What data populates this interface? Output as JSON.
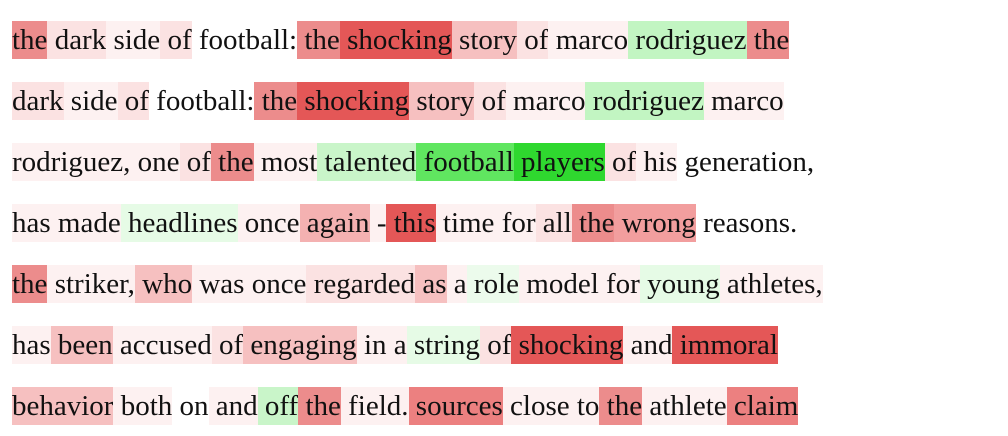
{
  "lines": [
    [
      [
        "the",
        "#ec8c8c"
      ],
      [
        "dark",
        "#fbe2e2"
      ],
      [
        "side",
        "#fdf1f1"
      ],
      [
        "of",
        "#fbe2e2"
      ],
      [
        "football:",
        "#ffffff"
      ],
      [
        "the",
        "#ec8c8c"
      ],
      [
        "shocking",
        "#e45757"
      ],
      [
        "story",
        "#f6c0c0"
      ],
      [
        "of",
        "#fbe2e2"
      ],
      [
        "marco",
        "#fdf1f1"
      ],
      [
        "rodriguez",
        "#c2f5c2"
      ],
      [
        "the",
        "#ec8c8c"
      ]
    ],
    [
      [
        "dark",
        "#fbe2e2"
      ],
      [
        "side",
        "#fdf1f1"
      ],
      [
        "of",
        "#fbe2e2"
      ],
      [
        "football:",
        "#ffffff"
      ],
      [
        "the",
        "#ec8c8c"
      ],
      [
        "shocking",
        "#e45757"
      ],
      [
        "story",
        "#f6c0c0"
      ],
      [
        "of",
        "#fbe2e2"
      ],
      [
        "marco",
        "#fdf1f1"
      ],
      [
        "rodriguez",
        "#c2f5c2"
      ],
      [
        "marco",
        "#fdf1f1"
      ]
    ],
    [
      [
        "rodriguez,",
        "#fdf1f1"
      ],
      [
        "one",
        "#fdf1f1"
      ],
      [
        "of",
        "#fbe2e2"
      ],
      [
        "the",
        "#ec8c8c"
      ],
      [
        "most",
        "#fdf1f1"
      ],
      [
        "talented",
        "#c9f5c9"
      ],
      [
        "football",
        "#60e660"
      ],
      [
        "players",
        "#2fd82f"
      ],
      [
        "of",
        "#fbe2e2"
      ],
      [
        "his",
        "#fdf1f1"
      ],
      [
        "generation,",
        "#ffffff"
      ]
    ],
    [
      [
        "has",
        "#fdf1f1"
      ],
      [
        "made",
        "#fdf1f1"
      ],
      [
        "headlines",
        "#e6fbe6"
      ],
      [
        "once",
        "#fdf1f1"
      ],
      [
        "again",
        "#f4b1b1"
      ],
      [
        "-",
        "#fdf1f1"
      ],
      [
        "this",
        "#e45757"
      ],
      [
        "time",
        "#fdf1f1"
      ],
      [
        "for",
        "#fdf1f1"
      ],
      [
        "all",
        "#fbe2e2"
      ],
      [
        "the",
        "#ec8c8c"
      ],
      [
        "wrong",
        "#f29e9e"
      ],
      [
        "reasons.",
        "#ffffff"
      ]
    ],
    [
      [
        "the",
        "#ec8c8c"
      ],
      [
        "striker,",
        "#fdf1f1"
      ],
      [
        "who",
        "#f6c0c0"
      ],
      [
        "was",
        "#fdf1f1"
      ],
      [
        "once",
        "#fdf1f1"
      ],
      [
        "regarded",
        "#fbe2e2"
      ],
      [
        "as",
        "#f6c0c0"
      ],
      [
        "a",
        "#fdf1f1"
      ],
      [
        "role",
        "#ecfbec"
      ],
      [
        "model",
        "#fdf1f1"
      ],
      [
        "for",
        "#fdf1f1"
      ],
      [
        "young",
        "#e6fbe6"
      ],
      [
        "athletes,",
        "#fdf1f1"
      ]
    ],
    [
      [
        "has",
        "#fdf1f1"
      ],
      [
        "been",
        "#f6c0c0"
      ],
      [
        "accused",
        "#fdf1f1"
      ],
      [
        "of",
        "#fbe2e2"
      ],
      [
        "engaging",
        "#f6c0c0"
      ],
      [
        "in",
        "#fdf1f1"
      ],
      [
        "a",
        "#fdf1f1"
      ],
      [
        "string",
        "#e6fbe6"
      ],
      [
        "of",
        "#fbe2e2"
      ],
      [
        "shocking",
        "#e45757"
      ],
      [
        "and",
        "#fdf1f1"
      ],
      [
        "immoral",
        "#e45757"
      ]
    ],
    [
      [
        "behavior",
        "#f6c0c0"
      ],
      [
        "both",
        "#fdf1f1"
      ],
      [
        "on",
        "#ffffff"
      ],
      [
        "and",
        "#fdf1f1"
      ],
      [
        "off",
        "#c9f5c9"
      ],
      [
        "the",
        "#ec8c8c"
      ],
      [
        "field.",
        "#fdf1f1"
      ],
      [
        "sources",
        "#ec8080"
      ],
      [
        "close",
        "#fdf1f1"
      ],
      [
        "to",
        "#fdf1f1"
      ],
      [
        "the",
        "#ec8c8c"
      ],
      [
        "athlete",
        "#fdf1f1"
      ],
      [
        "claim",
        "#ec8080"
      ]
    ]
  ]
}
